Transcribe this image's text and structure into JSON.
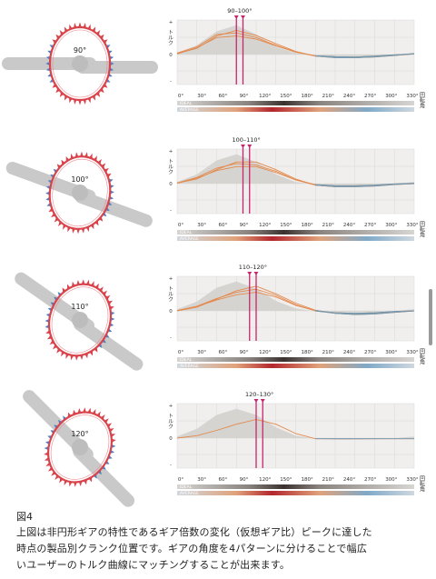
{
  "figure": {
    "caption_title": "図4",
    "caption_lines": [
      "上図は非円形ギアの特性であるギア倍数の変化（仮想ギア比）ピークに達した",
      "時点の製品別クランク位置です。ギアの角度を4パターンに分けることで幅広",
      "いユーザーのトルク曲線にマッチングすることが出来ます。"
    ]
  },
  "axis": {
    "y_label": "トルク",
    "x_label": "回転角",
    "x_ticks": [
      "0°",
      "30°",
      "60°",
      "90°",
      "120°",
      "150°",
      "180°",
      "210°",
      "240°",
      "270°",
      "300°",
      "330°"
    ],
    "y_ticks": [
      "+",
      "0",
      "-"
    ],
    "bar_ideal": "IDEAL",
    "bar_average": "AVERAGE"
  },
  "colors": {
    "chainring_red": "#d9434b",
    "chainring_blue": "#4f7fc2",
    "marker": "#c8246c",
    "curve_orange": "#e38a4e",
    "curve_blue": "#6b9ab8",
    "area": "#d4d2cf"
  },
  "chart_data": [
    {
      "type": "line",
      "chainring_label": "90°",
      "peak_label": "90–100°",
      "peak_range": [
        90,
        100
      ],
      "x": [
        0,
        30,
        60,
        90,
        120,
        150,
        180,
        210,
        240,
        270,
        300,
        330,
        360
      ],
      "ideal_area": [
        0.05,
        0.3,
        0.75,
        0.95,
        0.65,
        0.25,
        0.05,
        -0.02,
        -0.05,
        -0.05,
        -0.04,
        0,
        0.05
      ],
      "series": [
        {
          "values": [
            0.03,
            0.2,
            0.6,
            0.78,
            0.62,
            0.35,
            0.1,
            -0.05,
            -0.08,
            -0.1,
            -0.08,
            -0.03,
            0.02
          ]
        },
        {
          "values": [
            0.05,
            0.25,
            0.65,
            0.7,
            0.55,
            0.3,
            0.08,
            -0.05,
            -0.1,
            -0.1,
            -0.07,
            -0.02,
            0.03
          ]
        },
        {
          "values": [
            0.02,
            0.22,
            0.55,
            0.6,
            0.5,
            0.28,
            0.08,
            -0.04,
            -0.07,
            -0.08,
            -0.05,
            -0.01,
            0.02
          ]
        }
      ]
    },
    {
      "type": "line",
      "chainring_label": "100°",
      "peak_label": "100–110°",
      "peak_range": [
        100,
        110
      ],
      "x": [
        0,
        30,
        60,
        90,
        120,
        150,
        180,
        210,
        240,
        270,
        300,
        330,
        360
      ],
      "ideal_area": [
        0.05,
        0.3,
        0.75,
        0.95,
        0.7,
        0.3,
        0.05,
        -0.02,
        -0.05,
        -0.05,
        -0.04,
        0,
        0.05
      ],
      "series": [
        {
          "values": [
            0.02,
            0.15,
            0.45,
            0.7,
            0.7,
            0.45,
            0.15,
            -0.05,
            -0.1,
            -0.1,
            -0.08,
            -0.03,
            0.0
          ]
        },
        {
          "values": [
            0.02,
            0.2,
            0.5,
            0.65,
            0.6,
            0.4,
            0.12,
            -0.05,
            -0.09,
            -0.08,
            -0.06,
            -0.02,
            0.01
          ]
        },
        {
          "values": [
            0.01,
            0.18,
            0.42,
            0.55,
            0.55,
            0.36,
            0.12,
            -0.03,
            -0.07,
            -0.07,
            -0.05,
            -0.01,
            0.01
          ]
        }
      ]
    },
    {
      "type": "line",
      "chainring_label": "110°",
      "peak_label": "110–120°",
      "peak_range": [
        110,
        120
      ],
      "x": [
        0,
        30,
        60,
        90,
        120,
        150,
        180,
        210,
        240,
        270,
        300,
        330,
        360
      ],
      "ideal_area": [
        0.05,
        0.3,
        0.75,
        0.95,
        0.72,
        0.32,
        0.08,
        -0.02,
        -0.05,
        -0.05,
        -0.04,
        0,
        0.05
      ],
      "series": [
        {
          "values": [
            0.0,
            0.12,
            0.38,
            0.65,
            0.8,
            0.55,
            0.25,
            0.02,
            -0.08,
            -0.12,
            -0.1,
            -0.05,
            0.0
          ]
        },
        {
          "values": [
            0.01,
            0.15,
            0.4,
            0.6,
            0.7,
            0.5,
            0.2,
            0.0,
            -0.08,
            -0.1,
            -0.08,
            -0.03,
            0.0
          ]
        },
        {
          "values": [
            0.01,
            0.14,
            0.35,
            0.52,
            0.6,
            0.45,
            0.18,
            0.0,
            -0.06,
            -0.08,
            -0.06,
            -0.02,
            0.0
          ]
        }
      ]
    },
    {
      "type": "line",
      "chainring_label": "120°",
      "peak_label": "120–130°",
      "peak_range": [
        120,
        130
      ],
      "x": [
        0,
        30,
        60,
        90,
        120,
        150,
        180,
        210,
        240,
        270,
        300,
        330,
        360
      ],
      "ideal_area": [
        0.05,
        0.3,
        0.75,
        0.95,
        0.75,
        0.35,
        0.08,
        -0.02,
        -0.05,
        -0.05,
        -0.04,
        0,
        0.05
      ],
      "series": [
        {
          "values": [
            0.0,
            0.08,
            0.25,
            0.45,
            0.6,
            0.45,
            0.15,
            -0.02,
            -0.02,
            -0.02,
            -0.02,
            -0.02,
            -0.02
          ]
        }
      ]
    }
  ]
}
